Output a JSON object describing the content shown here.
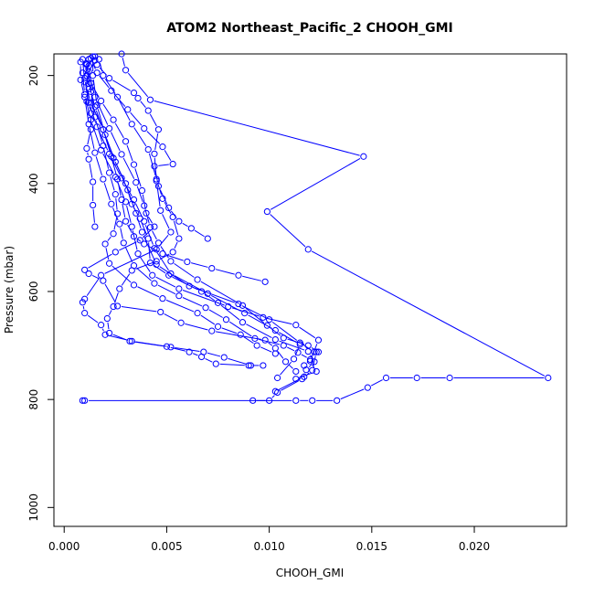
{
  "chart_data": {
    "type": "line",
    "title": "ATOM2 Northeast_Pacific_2 CHOOH_GMI",
    "xlabel": "CHOOH_GMI",
    "ylabel": "Pressure (mbar)",
    "xlim": [
      -0.0005,
      0.0245
    ],
    "ylim": [
      1035,
      160
    ],
    "y_reversed": true,
    "grid": false,
    "legend": "none",
    "x_ticks": [
      0.0,
      0.005,
      0.01,
      0.015,
      0.02
    ],
    "x_tick_labels": [
      "0.000",
      "0.005",
      "0.010",
      "0.015",
      "0.020"
    ],
    "y_ticks": [
      200,
      400,
      600,
      800,
      1000
    ],
    "y_tick_labels": [
      "200",
      "400",
      "600",
      "800",
      "1000"
    ],
    "color": "#0000ff",
    "marker": "open-circle",
    "series": [
      {
        "values": [
          [
            0.0009,
            802
          ],
          [
            0.001,
            802
          ],
          [
            0.0113,
            802
          ],
          [
            0.0121,
            802
          ],
          [
            0.0133,
            802
          ],
          [
            0.0148,
            778
          ],
          [
            0.0157,
            760
          ],
          [
            0.0172,
            760
          ],
          [
            0.0188,
            760
          ],
          [
            0.0236,
            760
          ],
          [
            0.0119,
            522
          ],
          [
            0.0099,
            452
          ],
          [
            0.0146,
            350
          ],
          [
            0.0042,
            245
          ],
          [
            0.003,
            190
          ],
          [
            0.0028,
            160
          ]
        ]
      },
      {
        "values": [
          [
            0.0103,
            785
          ],
          [
            0.0117,
            758
          ],
          [
            0.0121,
            746
          ],
          [
            0.0123,
            712
          ],
          [
            0.0122,
            712
          ],
          [
            0.0115,
            695
          ],
          [
            0.01,
            652
          ],
          [
            0.0085,
            623
          ],
          [
            0.0061,
            590
          ],
          [
            0.0045,
            550
          ],
          [
            0.0038,
            490
          ],
          [
            0.0035,
            455
          ],
          [
            0.0031,
            412
          ],
          [
            0.0025,
            360
          ],
          [
            0.002,
            310
          ],
          [
            0.0016,
            255
          ],
          [
            0.0014,
            200
          ],
          [
            0.0014,
            165
          ]
        ]
      },
      {
        "values": [
          [
            0.0104,
            760
          ],
          [
            0.0112,
            725
          ],
          [
            0.0115,
            698
          ],
          [
            0.0103,
            672
          ],
          [
            0.0088,
            640
          ],
          [
            0.007,
            604
          ],
          [
            0.0052,
            567
          ],
          [
            0.0044,
            520
          ],
          [
            0.0039,
            470
          ],
          [
            0.0034,
            430
          ],
          [
            0.0028,
            390
          ],
          [
            0.0022,
            345
          ],
          [
            0.0016,
            295
          ],
          [
            0.0012,
            250
          ],
          [
            0.001,
            205
          ],
          [
            0.0012,
            170
          ]
        ]
      },
      {
        "values": [
          [
            0.0091,
            737
          ],
          [
            0.0078,
            722
          ],
          [
            0.0068,
            712
          ],
          [
            0.0052,
            703
          ],
          [
            0.0033,
            692
          ],
          [
            0.002,
            680
          ],
          [
            0.0018,
            662
          ],
          [
            0.001,
            640
          ],
          [
            0.0009,
            620
          ],
          [
            0.001,
            614
          ],
          [
            0.0018,
            570
          ],
          [
            0.0045,
            522
          ],
          [
            0.0052,
            490
          ],
          [
            0.0047,
            450
          ],
          [
            0.0045,
            395
          ],
          [
            0.0044,
            345
          ],
          [
            0.0046,
            300
          ],
          [
            0.0041,
            265
          ],
          [
            0.0036,
            242
          ],
          [
            0.0034,
            232
          ],
          [
            0.0022,
            205
          ],
          [
            0.0016,
            180
          ]
        ]
      },
      {
        "values": [
          [
            0.0113,
            762
          ],
          [
            0.0123,
            748
          ],
          [
            0.012,
            729
          ],
          [
            0.0124,
            690
          ],
          [
            0.0113,
            662
          ],
          [
            0.0097,
            648
          ],
          [
            0.008,
            628
          ],
          [
            0.0056,
            595
          ],
          [
            0.0043,
            570
          ],
          [
            0.0036,
            530
          ],
          [
            0.0033,
            480
          ],
          [
            0.003,
            434
          ],
          [
            0.0025,
            388
          ],
          [
            0.0018,
            338
          ],
          [
            0.0013,
            282
          ],
          [
            0.001,
            235
          ],
          [
            0.0009,
            195
          ],
          [
            0.0015,
            165
          ]
        ]
      },
      {
        "values": [
          [
            0.0113,
            748
          ],
          [
            0.0108,
            730
          ],
          [
            0.0103,
            705
          ],
          [
            0.0098,
            690
          ],
          [
            0.0072,
            673
          ],
          [
            0.0057,
            658
          ],
          [
            0.0047,
            638
          ],
          [
            0.0026,
            627
          ],
          [
            0.0019,
            580
          ],
          [
            0.0012,
            567
          ],
          [
            0.001,
            560
          ],
          [
            0.0025,
            527
          ],
          [
            0.0037,
            505
          ],
          [
            0.0044,
            480
          ],
          [
            0.004,
            455
          ],
          [
            0.0038,
            413
          ],
          [
            0.0034,
            365
          ],
          [
            0.003,
            322
          ],
          [
            0.0024,
            282
          ],
          [
            0.0018,
            247
          ],
          [
            0.0013,
            214
          ],
          [
            0.0012,
            182
          ]
        ]
      },
      {
        "values": [
          [
            0.0092,
            802
          ],
          [
            0.01,
            802
          ],
          [
            0.0104,
            787
          ],
          [
            0.0116,
            762
          ],
          [
            0.0118,
            745
          ],
          [
            0.0122,
            730
          ],
          [
            0.0119,
            711
          ],
          [
            0.0103,
            689
          ],
          [
            0.0087,
            657
          ],
          [
            0.0075,
            621
          ],
          [
            0.0067,
            600
          ],
          [
            0.0051,
            570
          ],
          [
            0.0042,
            547
          ],
          [
            0.0041,
            502
          ],
          [
            0.0037,
            465
          ],
          [
            0.0033,
            438
          ],
          [
            0.003,
            400
          ],
          [
            0.0024,
            353
          ],
          [
            0.0019,
            300
          ],
          [
            0.0013,
            250
          ],
          [
            0.001,
            212
          ],
          [
            0.0009,
            170
          ]
        ]
      },
      {
        "values": [
          [
            0.0103,
            715
          ],
          [
            0.0094,
            700
          ],
          [
            0.0086,
            680
          ],
          [
            0.0075,
            665
          ],
          [
            0.0065,
            640
          ],
          [
            0.0048,
            613
          ],
          [
            0.0034,
            588
          ],
          [
            0.0022,
            548
          ],
          [
            0.002,
            512
          ],
          [
            0.0024,
            493
          ],
          [
            0.0026,
            456
          ],
          [
            0.0025,
            420
          ],
          [
            0.0022,
            380
          ],
          [
            0.0019,
            330
          ],
          [
            0.0015,
            277
          ],
          [
            0.0013,
            230
          ],
          [
            0.0011,
            180
          ]
        ]
      },
      {
        "values": [
          [
            0.0124,
            712
          ],
          [
            0.0119,
            700
          ],
          [
            0.0107,
            686
          ],
          [
            0.0099,
            663
          ],
          [
            0.0087,
            626
          ],
          [
            0.0065,
            578
          ],
          [
            0.0052,
            544
          ],
          [
            0.0046,
            510
          ],
          [
            0.0042,
            481
          ],
          [
            0.0039,
            441
          ],
          [
            0.0035,
            398
          ],
          [
            0.0028,
            346
          ],
          [
            0.0022,
            298
          ],
          [
            0.0015,
            240
          ],
          [
            0.0012,
            193
          ]
        ]
      },
      {
        "values": [
          [
            0.0097,
            737
          ],
          [
            0.009,
            737
          ],
          [
            0.0074,
            734
          ],
          [
            0.0067,
            721
          ],
          [
            0.0061,
            712
          ],
          [
            0.005,
            702
          ],
          [
            0.0032,
            692
          ],
          [
            0.0022,
            677
          ],
          [
            0.0021,
            650
          ],
          [
            0.0024,
            628
          ],
          [
            0.0027,
            595
          ],
          [
            0.0033,
            561
          ],
          [
            0.0045,
            544
          ],
          [
            0.0053,
            527
          ],
          [
            0.0056,
            502
          ],
          [
            0.0053,
            462
          ],
          [
            0.0048,
            428
          ],
          [
            0.0045,
            392
          ],
          [
            0.0041,
            337
          ],
          [
            0.0033,
            290
          ],
          [
            0.0026,
            240
          ],
          [
            0.0019,
            200
          ],
          [
            0.0017,
            170
          ]
        ]
      },
      {
        "values": [
          [
            0.0117,
            737
          ],
          [
            0.012,
            726
          ],
          [
            0.0114,
            713
          ],
          [
            0.0107,
            700
          ],
          [
            0.0093,
            687
          ],
          [
            0.0079,
            652
          ],
          [
            0.0069,
            630
          ],
          [
            0.0056,
            608
          ],
          [
            0.0044,
            585
          ],
          [
            0.0034,
            552
          ],
          [
            0.0029,
            510
          ],
          [
            0.0027,
            475
          ],
          [
            0.0023,
            438
          ],
          [
            0.0019,
            392
          ],
          [
            0.0015,
            343
          ],
          [
            0.0012,
            290
          ],
          [
            0.001,
            240
          ],
          [
            0.0008,
            208
          ],
          [
            0.0008,
            175
          ]
        ]
      },
      {
        "values": [
          [
            0.0098,
            582
          ],
          [
            0.0085,
            570
          ],
          [
            0.0072,
            557
          ],
          [
            0.006,
            545
          ],
          [
            0.0048,
            530
          ],
          [
            0.0039,
            512
          ],
          [
            0.0034,
            498
          ],
          [
            0.003,
            470
          ],
          [
            0.0028,
            430
          ],
          [
            0.0026,
            392
          ],
          [
            0.0023,
            350
          ],
          [
            0.0019,
            300
          ],
          [
            0.0015,
            258
          ],
          [
            0.0012,
            215
          ],
          [
            0.0011,
            178
          ]
        ]
      },
      {
        "values": [
          [
            0.007,
            502
          ],
          [
            0.0062,
            483
          ],
          [
            0.0056,
            470
          ],
          [
            0.0051,
            445
          ],
          [
            0.0046,
            405
          ],
          [
            0.0044,
            368
          ],
          [
            0.0053,
            364
          ],
          [
            0.0048,
            332
          ],
          [
            0.0039,
            298
          ],
          [
            0.0031,
            263
          ],
          [
            0.0023,
            228
          ],
          [
            0.0016,
            195
          ],
          [
            0.0013,
            168
          ]
        ]
      },
      {
        "values": [
          [
            0.0015,
            480
          ],
          [
            0.0014,
            440
          ],
          [
            0.0014,
            397
          ],
          [
            0.0012,
            355
          ],
          [
            0.0011,
            335
          ],
          [
            0.0013,
            300
          ],
          [
            0.0013,
            270
          ],
          [
            0.0012,
            250
          ],
          [
            0.0011,
            248
          ],
          [
            0.0012,
            225
          ],
          [
            0.0011,
            200
          ],
          [
            0.0015,
            172
          ]
        ]
      }
    ]
  }
}
